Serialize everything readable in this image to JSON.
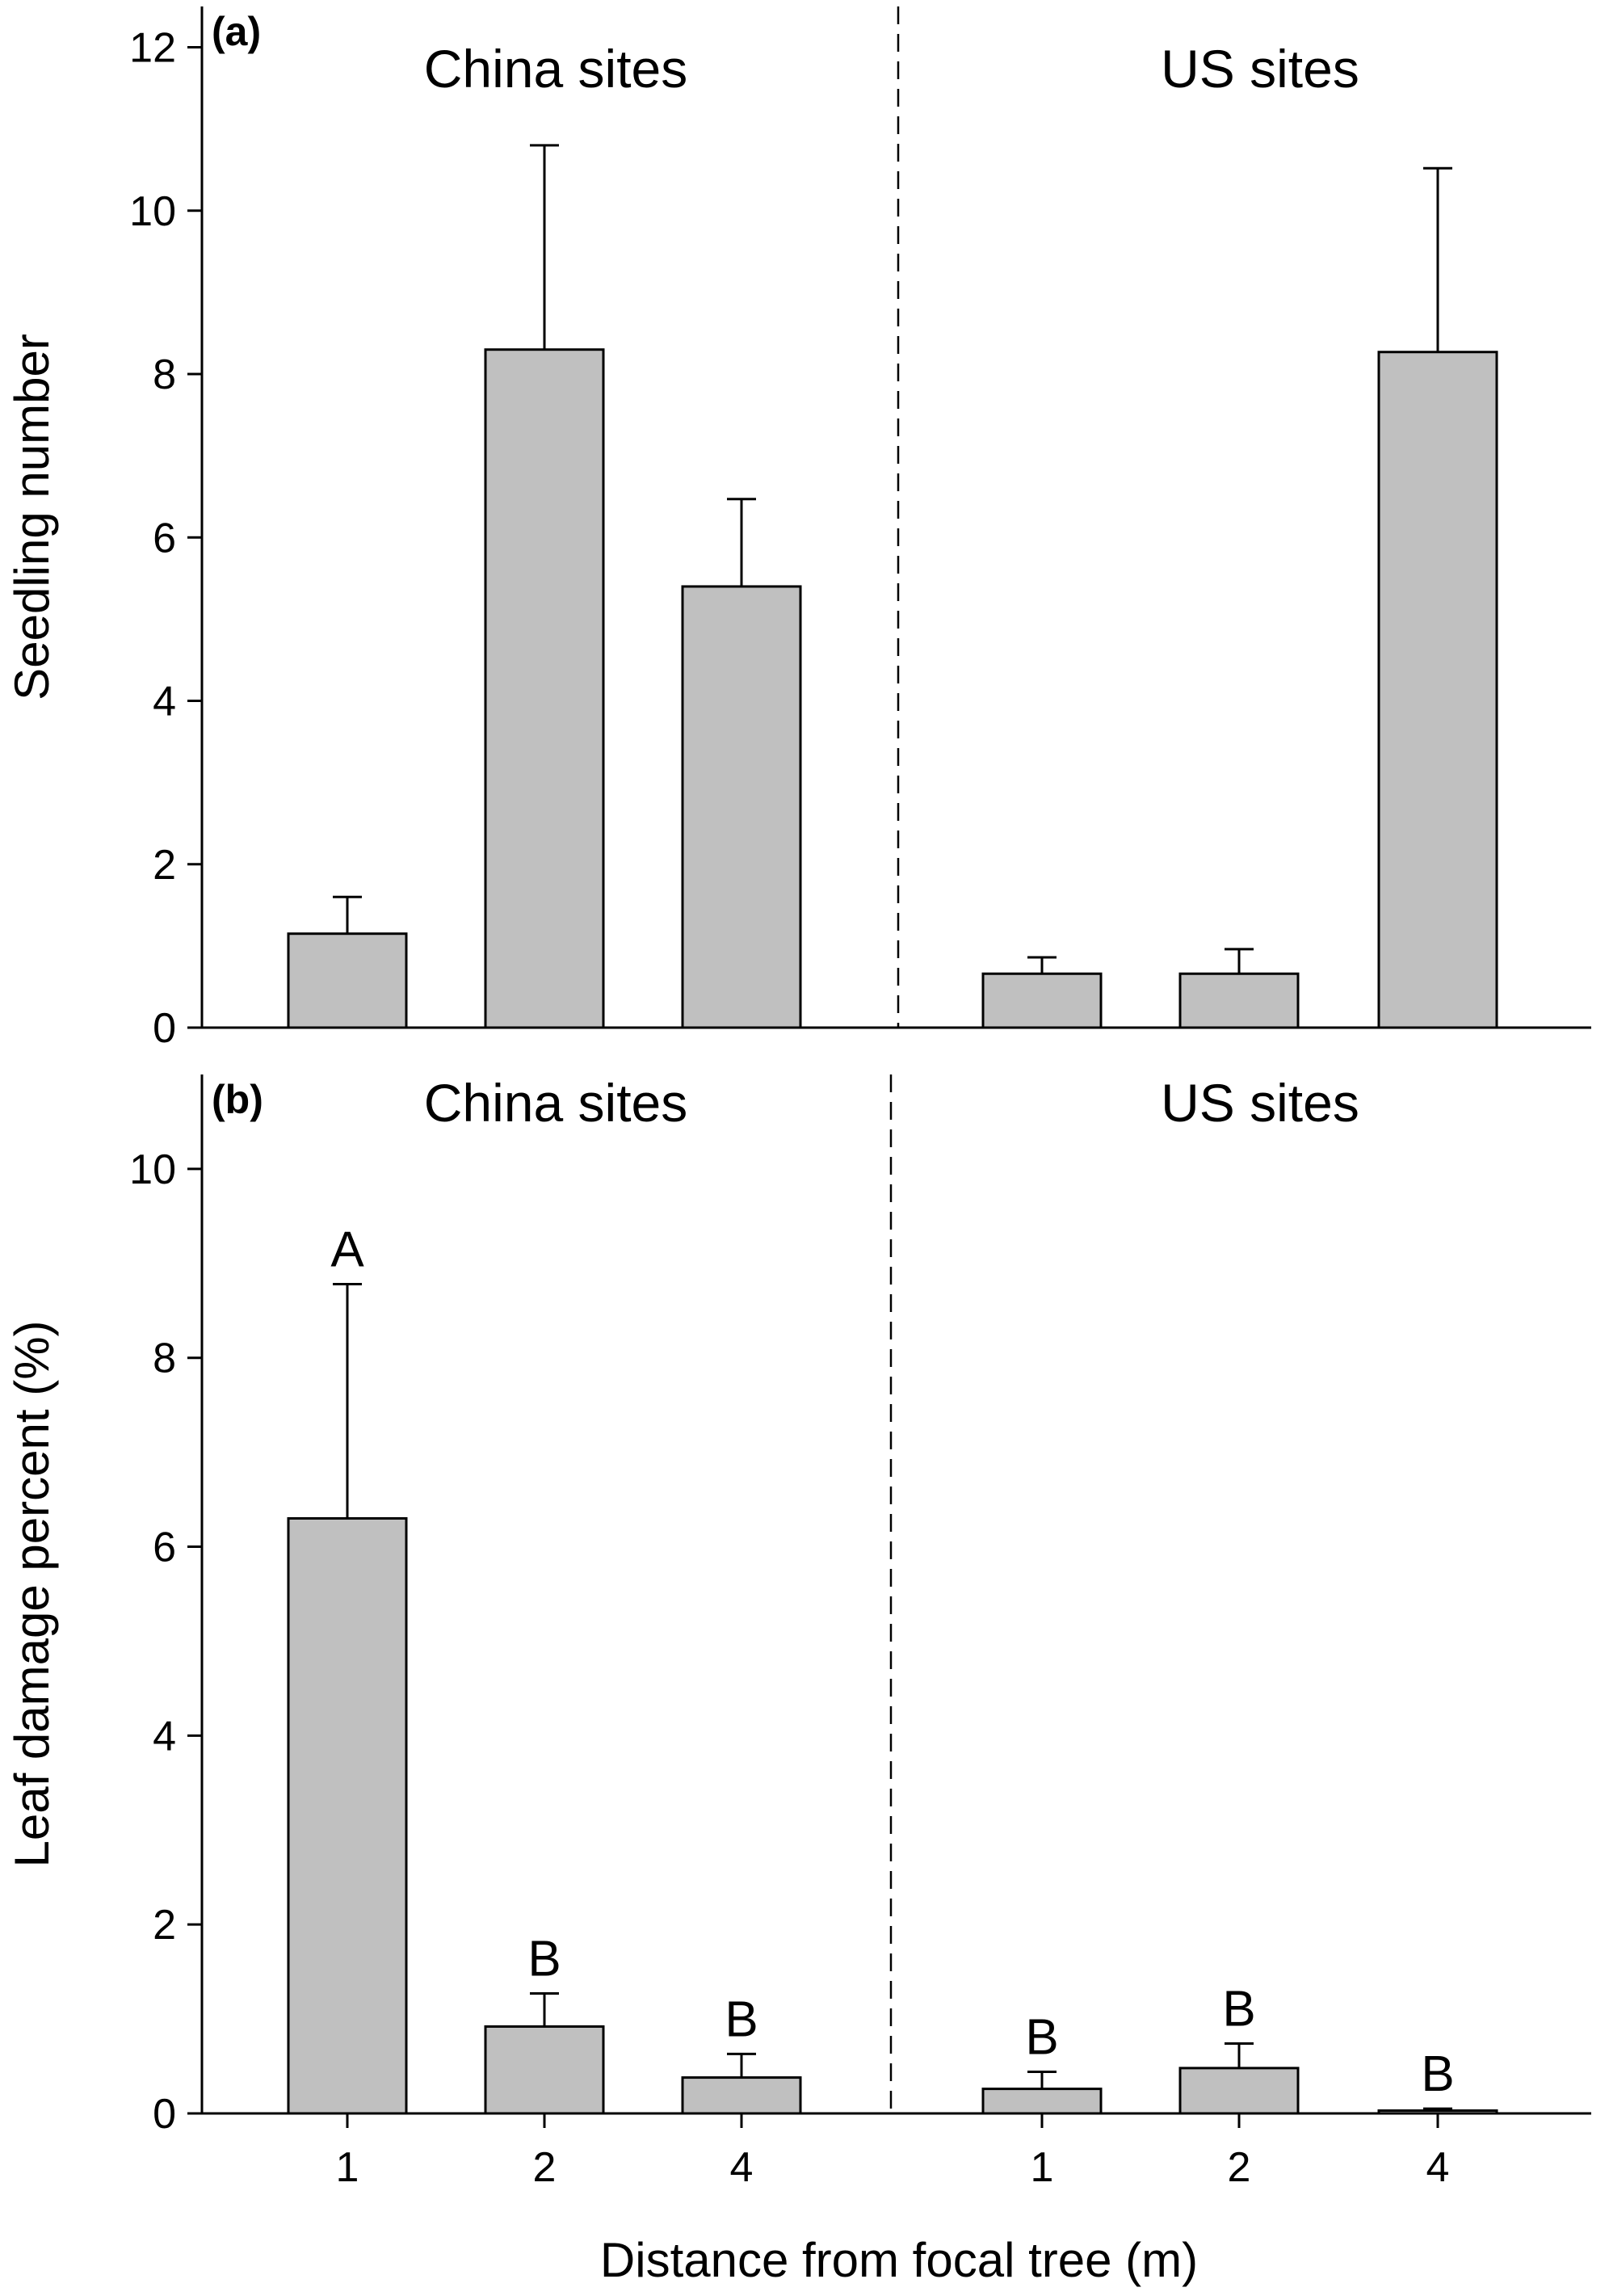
{
  "chart_data": [
    {
      "type": "bar",
      "panel_label": "(a)",
      "ylabel": "Seedling number",
      "xlabel": "",
      "ylim": [
        0,
        12.5
      ],
      "yticks": [
        0,
        2,
        4,
        6,
        8,
        10,
        12
      ],
      "grid": false,
      "groups": [
        {
          "label": "China sites",
          "categories": [
            "1",
            "2",
            "4"
          ],
          "values": [
            1.15,
            8.3,
            5.4
          ],
          "errors": [
            0.45,
            2.5,
            1.07
          ],
          "letters": [
            "",
            "",
            ""
          ]
        },
        {
          "label": "US sites",
          "categories": [
            "1",
            "2",
            "4"
          ],
          "values": [
            0.66,
            0.66,
            8.27
          ],
          "errors": [
            0.2,
            0.3,
            2.25
          ],
          "letters": [
            "",
            "",
            ""
          ]
        }
      ]
    },
    {
      "type": "bar",
      "panel_label": "(b)",
      "ylabel": "Leaf damage percent (%)",
      "xlabel": "Distance from focal tree (m)",
      "ylim": [
        0,
        11
      ],
      "yticks": [
        0,
        2,
        4,
        6,
        8,
        10
      ],
      "grid": false,
      "groups": [
        {
          "label": "China sites",
          "categories": [
            "1",
            "2",
            "4"
          ],
          "values": [
            6.3,
            0.92,
            0.38
          ],
          "errors": [
            2.48,
            0.35,
            0.25
          ],
          "letters": [
            "A",
            "B",
            "B"
          ]
        },
        {
          "label": "US sites",
          "categories": [
            "1",
            "2",
            "4"
          ],
          "values": [
            0.26,
            0.48,
            0.03
          ],
          "errors": [
            0.18,
            0.26,
            0.02
          ],
          "letters": [
            "B",
            "B",
            "B"
          ]
        }
      ]
    }
  ]
}
